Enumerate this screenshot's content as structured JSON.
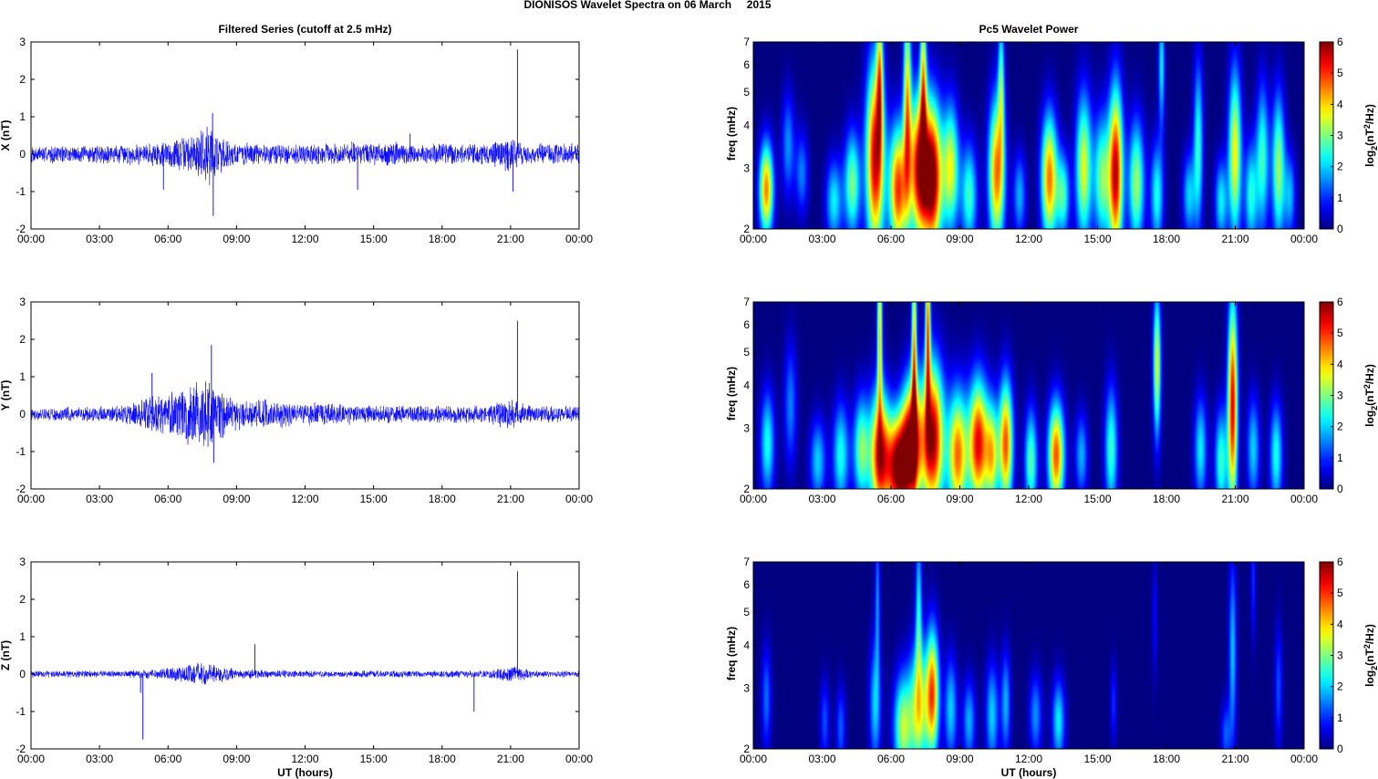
{
  "figure": {
    "title": "DIONISOS Wavelet Spectra on 06 March     2015"
  },
  "chart_data": [
    {
      "type": "line",
      "panel": "X filtered series",
      "title": "Filtered Series (cutoff at 2.5 mHz)",
      "ylabel": "X (nT)",
      "xlabel": "",
      "xlim_hours": [
        0,
        24
      ],
      "ylim": [
        -2,
        3
      ],
      "xticks": [
        "00:00",
        "03:00",
        "06:00",
        "09:00",
        "12:00",
        "15:00",
        "18:00",
        "21:00",
        "00:00"
      ],
      "yticks": [
        "-2",
        "-1",
        "0",
        "1",
        "2",
        "3"
      ],
      "line_color": "#0000ff",
      "noise_envelope": {
        "t_hours": [
          0,
          2,
          4,
          5,
          6,
          7,
          7.6,
          8,
          8.5,
          9,
          10,
          12,
          13.5,
          14,
          15,
          16,
          17,
          18,
          19,
          20,
          20.8,
          21.2,
          21.6,
          22,
          23,
          24
        ],
        "amplitude_nT": [
          0.25,
          0.25,
          0.28,
          0.32,
          0.42,
          0.55,
          0.9,
          0.8,
          0.45,
          0.35,
          0.3,
          0.3,
          0.3,
          0.35,
          0.3,
          0.35,
          0.28,
          0.3,
          0.3,
          0.3,
          0.5,
          0.45,
          0.3,
          0.3,
          0.3,
          0.3
        ]
      },
      "spikes": [
        {
          "t_hours": 5.8,
          "value_nT": -0.95
        },
        {
          "t_hours": 7.95,
          "value_nT": 1.1
        },
        {
          "t_hours": 7.98,
          "value_nT": -1.65
        },
        {
          "t_hours": 14.3,
          "value_nT": -0.95
        },
        {
          "t_hours": 16.6,
          "value_nT": 0.55
        },
        {
          "t_hours": 21.1,
          "value_nT": -1.0
        },
        {
          "t_hours": 21.3,
          "value_nT": 2.8
        }
      ]
    },
    {
      "type": "heatmap",
      "panel": "X wavelet power",
      "title": "Pc5 Wavelet Power",
      "ylabel": "freq (mHz)",
      "xlabel": "",
      "xlim_hours": [
        0,
        24
      ],
      "ylim_mHz": [
        2,
        7
      ],
      "y_scale": "log",
      "xticks": [
        "00:00",
        "03:00",
        "06:00",
        "09:00",
        "12:00",
        "15:00",
        "18:00",
        "21:00",
        "00:00"
      ],
      "yticks": [
        "2",
        "3",
        "4",
        "5",
        "6",
        "7"
      ],
      "colorbar": {
        "label": "log2(nT²/Hz)",
        "range": [
          0,
          6
        ],
        "ticks": [
          "0",
          "1",
          "2",
          "3",
          "4",
          "5",
          "6"
        ],
        "colormap": "jet"
      },
      "blobs": [
        {
          "t": 0.55,
          "f": 2.6,
          "v": 4.5,
          "dt": 0.22,
          "df": 0.22
        },
        {
          "t": 1.5,
          "f": 3.5,
          "v": 1.6,
          "dt": 0.2,
          "df": 0.25
        },
        {
          "t": 2.1,
          "f": 2.9,
          "v": 1.5,
          "dt": 0.2,
          "df": 0.2
        },
        {
          "t": 3.5,
          "f": 2.4,
          "v": 2.2,
          "dt": 0.25,
          "df": 0.2
        },
        {
          "t": 4.3,
          "f": 2.7,
          "v": 3.0,
          "dt": 0.25,
          "df": 0.25
        },
        {
          "t": 5.3,
          "f": 3.2,
          "v": 5.6,
          "dt": 0.28,
          "df": 0.45
        },
        {
          "t": 5.5,
          "f": 5.6,
          "v": 3.2,
          "dt": 0.1,
          "df": 0.35
        },
        {
          "t": 6.3,
          "f": 2.6,
          "v": 5.0,
          "dt": 0.28,
          "df": 0.3
        },
        {
          "t": 6.7,
          "f": 4.8,
          "v": 3.8,
          "dt": 0.12,
          "df": 0.5
        },
        {
          "t": 7.2,
          "f": 3.0,
          "v": 5.3,
          "dt": 0.3,
          "df": 0.35
        },
        {
          "t": 7.4,
          "f": 5.5,
          "v": 3.5,
          "dt": 0.1,
          "df": 0.4
        },
        {
          "t": 7.8,
          "f": 2.8,
          "v": 6.0,
          "dt": 0.3,
          "df": 0.35
        },
        {
          "t": 8.6,
          "f": 3.0,
          "v": 3.6,
          "dt": 0.25,
          "df": 0.3
        },
        {
          "t": 9.4,
          "f": 2.5,
          "v": 2.6,
          "dt": 0.25,
          "df": 0.25
        },
        {
          "t": 10.6,
          "f": 2.9,
          "v": 4.6,
          "dt": 0.25,
          "df": 0.35
        },
        {
          "t": 10.8,
          "f": 5.3,
          "v": 2.5,
          "dt": 0.1,
          "df": 0.35
        },
        {
          "t": 11.6,
          "f": 2.5,
          "v": 1.8,
          "dt": 0.2,
          "df": 0.2
        },
        {
          "t": 12.9,
          "f": 2.8,
          "v": 4.6,
          "dt": 0.25,
          "df": 0.3
        },
        {
          "t": 13.5,
          "f": 2.5,
          "v": 2.6,
          "dt": 0.2,
          "df": 0.2
        },
        {
          "t": 14.4,
          "f": 3.0,
          "v": 3.6,
          "dt": 0.25,
          "df": 0.35
        },
        {
          "t": 15.2,
          "f": 2.8,
          "v": 3.0,
          "dt": 0.25,
          "df": 0.3
        },
        {
          "t": 15.8,
          "f": 2.9,
          "v": 5.6,
          "dt": 0.22,
          "df": 0.4
        },
        {
          "t": 16.7,
          "f": 2.7,
          "v": 3.2,
          "dt": 0.25,
          "df": 0.3
        },
        {
          "t": 17.6,
          "f": 2.5,
          "v": 2.4,
          "dt": 0.2,
          "df": 0.25
        },
        {
          "t": 17.8,
          "f": 6.0,
          "v": 2.2,
          "dt": 0.1,
          "df": 0.3
        },
        {
          "t": 19.0,
          "f": 2.5,
          "v": 2.0,
          "dt": 0.2,
          "df": 0.2
        },
        {
          "t": 19.4,
          "f": 3.5,
          "v": 2.5,
          "dt": 0.15,
          "df": 0.4
        },
        {
          "t": 20.4,
          "f": 2.4,
          "v": 2.2,
          "dt": 0.2,
          "df": 0.2
        },
        {
          "t": 21.0,
          "f": 3.3,
          "v": 3.8,
          "dt": 0.2,
          "df": 0.4
        },
        {
          "t": 21.7,
          "f": 2.5,
          "v": 2.4,
          "dt": 0.2,
          "df": 0.25
        },
        {
          "t": 22.2,
          "f": 3.2,
          "v": 2.6,
          "dt": 0.2,
          "df": 0.35
        },
        {
          "t": 22.9,
          "f": 3.0,
          "v": 3.2,
          "dt": 0.2,
          "df": 0.35
        },
        {
          "t": 23.4,
          "f": 2.5,
          "v": 1.8,
          "dt": 0.18,
          "df": 0.2
        }
      ]
    },
    {
      "type": "line",
      "panel": "Y filtered series",
      "title": "",
      "ylabel": "Y (nT)",
      "xlabel": "",
      "xlim_hours": [
        0,
        24
      ],
      "ylim": [
        -2,
        3
      ],
      "xticks": [
        "00:00",
        "03:00",
        "06:00",
        "09:00",
        "12:00",
        "15:00",
        "18:00",
        "21:00",
        "00:00"
      ],
      "yticks": [
        "-2",
        "-1",
        "0",
        "1",
        "2",
        "3"
      ],
      "line_color": "#0000ff",
      "noise_envelope": {
        "t_hours": [
          0,
          2,
          4,
          5,
          5.5,
          6,
          6.5,
          7,
          7.5,
          8,
          8.5,
          9,
          10,
          11,
          12,
          13,
          14,
          15,
          16,
          17,
          18,
          19,
          20,
          20.8,
          21.3,
          21.7,
          22,
          23,
          24
        ],
        "amplitude_nT": [
          0.2,
          0.2,
          0.25,
          0.5,
          0.7,
          0.65,
          0.75,
          0.9,
          1.1,
          1.0,
          0.6,
          0.45,
          0.45,
          0.4,
          0.35,
          0.3,
          0.3,
          0.25,
          0.25,
          0.25,
          0.3,
          0.25,
          0.25,
          0.45,
          0.4,
          0.25,
          0.25,
          0.25,
          0.25
        ]
      },
      "spikes": [
        {
          "t_hours": 5.3,
          "value_nT": 1.1
        },
        {
          "t_hours": 7.9,
          "value_nT": 1.85
        },
        {
          "t_hours": 8.0,
          "value_nT": -1.3
        },
        {
          "t_hours": 21.3,
          "value_nT": 2.5
        }
      ]
    },
    {
      "type": "heatmap",
      "panel": "Y wavelet power",
      "title": "",
      "ylabel": "freq (mHz)",
      "xlabel": "",
      "xlim_hours": [
        0,
        24
      ],
      "ylim_mHz": [
        2,
        7
      ],
      "y_scale": "log",
      "xticks": [
        "00:00",
        "03:00",
        "06:00",
        "09:00",
        "12:00",
        "15:00",
        "18:00",
        "21:00",
        "00:00"
      ],
      "yticks": [
        "2",
        "3",
        "4",
        "5",
        "6",
        "7"
      ],
      "colorbar": {
        "label": "log2(nT²/Hz)",
        "range": [
          0,
          6
        ],
        "ticks": [
          "0",
          "1",
          "2",
          "3",
          "4",
          "5",
          "6"
        ],
        "colormap": "jet"
      },
      "blobs": [
        {
          "t": 0.6,
          "f": 2.7,
          "v": 2.4,
          "dt": 0.22,
          "df": 0.25
        },
        {
          "t": 1.6,
          "f": 3.5,
          "v": 1.5,
          "dt": 0.2,
          "df": 0.3
        },
        {
          "t": 2.8,
          "f": 2.4,
          "v": 2.0,
          "dt": 0.25,
          "df": 0.2
        },
        {
          "t": 3.8,
          "f": 2.5,
          "v": 2.4,
          "dt": 0.25,
          "df": 0.25
        },
        {
          "t": 4.7,
          "f": 2.6,
          "v": 3.0,
          "dt": 0.25,
          "df": 0.25
        },
        {
          "t": 5.5,
          "f": 2.5,
          "v": 5.4,
          "dt": 0.3,
          "df": 0.3
        },
        {
          "t": 5.5,
          "f": 5.8,
          "v": 4.0,
          "dt": 0.08,
          "df": 0.4
        },
        {
          "t": 6.3,
          "f": 2.3,
          "v": 6.0,
          "dt": 0.35,
          "df": 0.25
        },
        {
          "t": 6.9,
          "f": 2.7,
          "v": 5.8,
          "dt": 0.3,
          "df": 0.3
        },
        {
          "t": 7.0,
          "f": 5.2,
          "v": 4.0,
          "dt": 0.08,
          "df": 0.5
        },
        {
          "t": 7.8,
          "f": 2.8,
          "v": 6.0,
          "dt": 0.35,
          "df": 0.35
        },
        {
          "t": 7.6,
          "f": 6.0,
          "v": 4.4,
          "dt": 0.08,
          "df": 0.4
        },
        {
          "t": 8.9,
          "f": 2.5,
          "v": 4.6,
          "dt": 0.3,
          "df": 0.3
        },
        {
          "t": 9.8,
          "f": 2.7,
          "v": 5.4,
          "dt": 0.3,
          "df": 0.3
        },
        {
          "t": 10.4,
          "f": 2.5,
          "v": 3.5,
          "dt": 0.2,
          "df": 0.25
        },
        {
          "t": 11.0,
          "f": 2.7,
          "v": 4.8,
          "dt": 0.22,
          "df": 0.3
        },
        {
          "t": 12.1,
          "f": 2.4,
          "v": 2.8,
          "dt": 0.2,
          "df": 0.25
        },
        {
          "t": 13.2,
          "f": 2.5,
          "v": 4.8,
          "dt": 0.25,
          "df": 0.25
        },
        {
          "t": 14.3,
          "f": 2.5,
          "v": 1.8,
          "dt": 0.2,
          "df": 0.2
        },
        {
          "t": 15.6,
          "f": 2.6,
          "v": 2.6,
          "dt": 0.2,
          "df": 0.3
        },
        {
          "t": 17.6,
          "f": 4.6,
          "v": 3.6,
          "dt": 0.12,
          "df": 0.35
        },
        {
          "t": 19.5,
          "f": 2.6,
          "v": 2.2,
          "dt": 0.2,
          "df": 0.25
        },
        {
          "t": 20.4,
          "f": 2.4,
          "v": 2.6,
          "dt": 0.2,
          "df": 0.25
        },
        {
          "t": 20.9,
          "f": 3.5,
          "v": 5.4,
          "dt": 0.15,
          "df": 0.5
        },
        {
          "t": 21.8,
          "f": 2.6,
          "v": 2.0,
          "dt": 0.2,
          "df": 0.25
        },
        {
          "t": 22.8,
          "f": 2.5,
          "v": 2.4,
          "dt": 0.2,
          "df": 0.25
        }
      ]
    },
    {
      "type": "line",
      "panel": "Z filtered series",
      "title": "",
      "ylabel": "Z (nT)",
      "xlabel": "UT (hours)",
      "xlim_hours": [
        0,
        24
      ],
      "ylim": [
        -2,
        3
      ],
      "xticks": [
        "00:00",
        "03:00",
        "06:00",
        "09:00",
        "12:00",
        "15:00",
        "18:00",
        "21:00",
        "00:00"
      ],
      "yticks": [
        "-2",
        "-1",
        "0",
        "1",
        "2",
        "3"
      ],
      "line_color": "#0000ff",
      "noise_envelope": {
        "t_hours": [
          0,
          2,
          4,
          5,
          6,
          7,
          7.5,
          8,
          9,
          10,
          12,
          14,
          16,
          18,
          20,
          21,
          21.4,
          22,
          24
        ],
        "amplitude_nT": [
          0.1,
          0.1,
          0.1,
          0.12,
          0.18,
          0.3,
          0.35,
          0.28,
          0.15,
          0.12,
          0.1,
          0.1,
          0.1,
          0.1,
          0.12,
          0.22,
          0.22,
          0.1,
          0.1
        ]
      },
      "spikes": [
        {
          "t_hours": 4.9,
          "value_nT": -1.75
        },
        {
          "t_hours": 4.8,
          "value_nT": -0.5
        },
        {
          "t_hours": 9.8,
          "value_nT": 0.8
        },
        {
          "t_hours": 19.4,
          "value_nT": -1.0
        },
        {
          "t_hours": 21.3,
          "value_nT": 2.75
        }
      ]
    },
    {
      "type": "heatmap",
      "panel": "Z wavelet power",
      "title": "",
      "ylabel": "freq (mHz)",
      "xlabel": "UT (hours)",
      "xlim_hours": [
        0,
        24
      ],
      "ylim_mHz": [
        2,
        7
      ],
      "y_scale": "log",
      "xticks": [
        "00:00",
        "03:00",
        "06:00",
        "09:00",
        "12:00",
        "15:00",
        "18:00",
        "21:00",
        "00:00"
      ],
      "yticks": [
        "2",
        "3",
        "4",
        "5",
        "6",
        "7"
      ],
      "colorbar": {
        "label": "log2(nT²/Hz)",
        "range": [
          0,
          6
        ],
        "ticks": [
          "0",
          "1",
          "2",
          "3",
          "4",
          "5",
          "6"
        ],
        "colormap": "jet"
      },
      "blobs": [
        {
          "t": 0.55,
          "f": 2.8,
          "v": 1.4,
          "dt": 0.15,
          "df": 0.25
        },
        {
          "t": 3.1,
          "f": 2.4,
          "v": 1.2,
          "dt": 0.15,
          "df": 0.2
        },
        {
          "t": 3.8,
          "f": 2.3,
          "v": 1.3,
          "dt": 0.15,
          "df": 0.2
        },
        {
          "t": 5.3,
          "f": 2.7,
          "v": 2.0,
          "dt": 0.18,
          "df": 0.3
        },
        {
          "t": 5.4,
          "f": 5.5,
          "v": 1.5,
          "dt": 0.08,
          "df": 0.35
        },
        {
          "t": 6.5,
          "f": 2.3,
          "v": 3.2,
          "dt": 0.28,
          "df": 0.25
        },
        {
          "t": 7.2,
          "f": 2.6,
          "v": 3.5,
          "dt": 0.3,
          "df": 0.3
        },
        {
          "t": 7.2,
          "f": 5.0,
          "v": 2.2,
          "dt": 0.1,
          "df": 0.4
        },
        {
          "t": 7.8,
          "f": 2.9,
          "v": 4.6,
          "dt": 0.2,
          "df": 0.3
        },
        {
          "t": 8.6,
          "f": 2.6,
          "v": 2.0,
          "dt": 0.2,
          "df": 0.25
        },
        {
          "t": 9.4,
          "f": 2.4,
          "v": 1.8,
          "dt": 0.2,
          "df": 0.2
        },
        {
          "t": 10.4,
          "f": 2.5,
          "v": 2.0,
          "dt": 0.2,
          "df": 0.25
        },
        {
          "t": 11.0,
          "f": 2.7,
          "v": 1.8,
          "dt": 0.15,
          "df": 0.25
        },
        {
          "t": 12.3,
          "f": 2.5,
          "v": 1.6,
          "dt": 0.2,
          "df": 0.2
        },
        {
          "t": 13.3,
          "f": 2.4,
          "v": 2.2,
          "dt": 0.2,
          "df": 0.2
        },
        {
          "t": 15.7,
          "f": 2.7,
          "v": 1.0,
          "dt": 0.1,
          "df": 0.2
        },
        {
          "t": 17.5,
          "f": 4.8,
          "v": 0.8,
          "dt": 0.08,
          "df": 0.3
        },
        {
          "t": 20.6,
          "f": 2.2,
          "v": 1.3,
          "dt": 0.15,
          "df": 0.15
        },
        {
          "t": 20.9,
          "f": 3.8,
          "v": 1.9,
          "dt": 0.12,
          "df": 0.45
        },
        {
          "t": 21.8,
          "f": 6.2,
          "v": 1.0,
          "dt": 0.08,
          "df": 0.3
        },
        {
          "t": 22.9,
          "f": 3.0,
          "v": 1.2,
          "dt": 0.12,
          "df": 0.3
        }
      ]
    }
  ]
}
